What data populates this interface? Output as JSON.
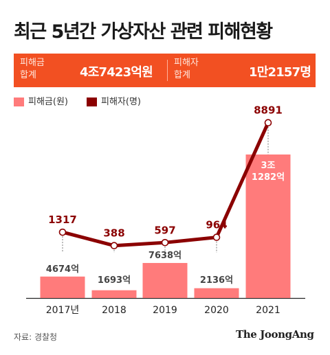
{
  "title": "최근 5년간 가상자산 관련 피해현황",
  "summary": {
    "amount_label": "피해금\n합계",
    "amount_value": "4조7423억원",
    "victims_label": "피해자\n합계",
    "victims_value": "1만2157명"
  },
  "legend": {
    "amount": "피해금(원)",
    "victims": "피해자(명)"
  },
  "colors": {
    "bar": "#ff7b7b",
    "line": "#8b0000",
    "banner": "#f25022"
  },
  "chart_data": {
    "type": "bar",
    "categories": [
      "2017년",
      "2018",
      "2019",
      "2020",
      "2021"
    ],
    "series": [
      {
        "name": "피해금(원)",
        "type": "bar",
        "unit": "억",
        "values": [
          4674,
          1693,
          7638,
          2136,
          31282
        ],
        "labels": [
          "4674억",
          "1693억",
          "7638억",
          "2136억",
          "3조\n1282억"
        ]
      },
      {
        "name": "피해자(명)",
        "type": "line",
        "values": [
          1317,
          388,
          597,
          964,
          8891
        ],
        "labels": [
          "1317",
          "388",
          "597",
          "964",
          "8891"
        ]
      }
    ]
  },
  "source": "자료: 경찰청",
  "brand": "The JoongAng"
}
